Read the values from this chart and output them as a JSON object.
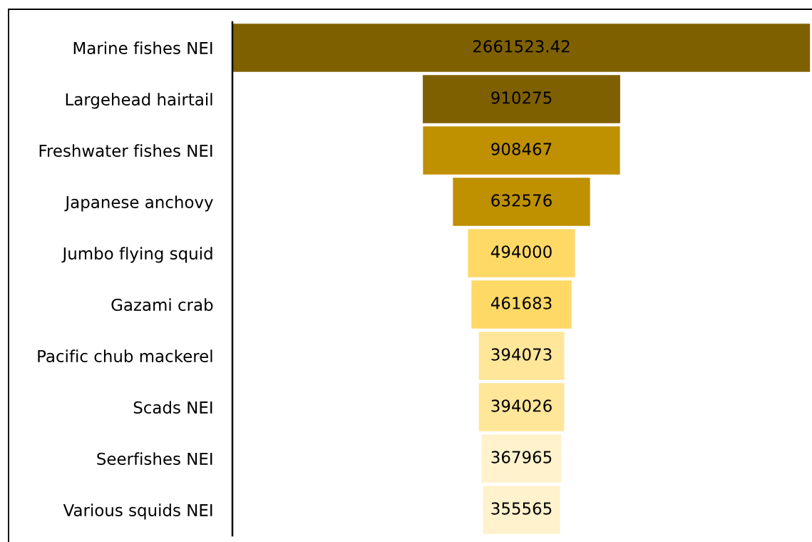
{
  "chart_data": {
    "type": "other",
    "categories": [
      "Marine fishes NEI",
      "Largehead hairtail",
      "Freshwater fishes NEI",
      "Japanese anchovy",
      "Jumbo flying squid",
      "Gazami crab",
      "Pacific chub mackerel",
      "Scads NEI",
      "Seerfishes NEI",
      "Various squids NEI"
    ],
    "values": [
      2661523.42,
      910275,
      908467,
      632576,
      494000,
      461683,
      394073,
      394026,
      367965,
      355565
    ],
    "colors": [
      "#7f6000",
      "#7f6000",
      "#bf9000",
      "#bf9000",
      "#ffd966",
      "#ffd966",
      "#ffe699",
      "#ffe699",
      "#fff2cc",
      "#fff2cc"
    ],
    "data_labels": true
  }
}
